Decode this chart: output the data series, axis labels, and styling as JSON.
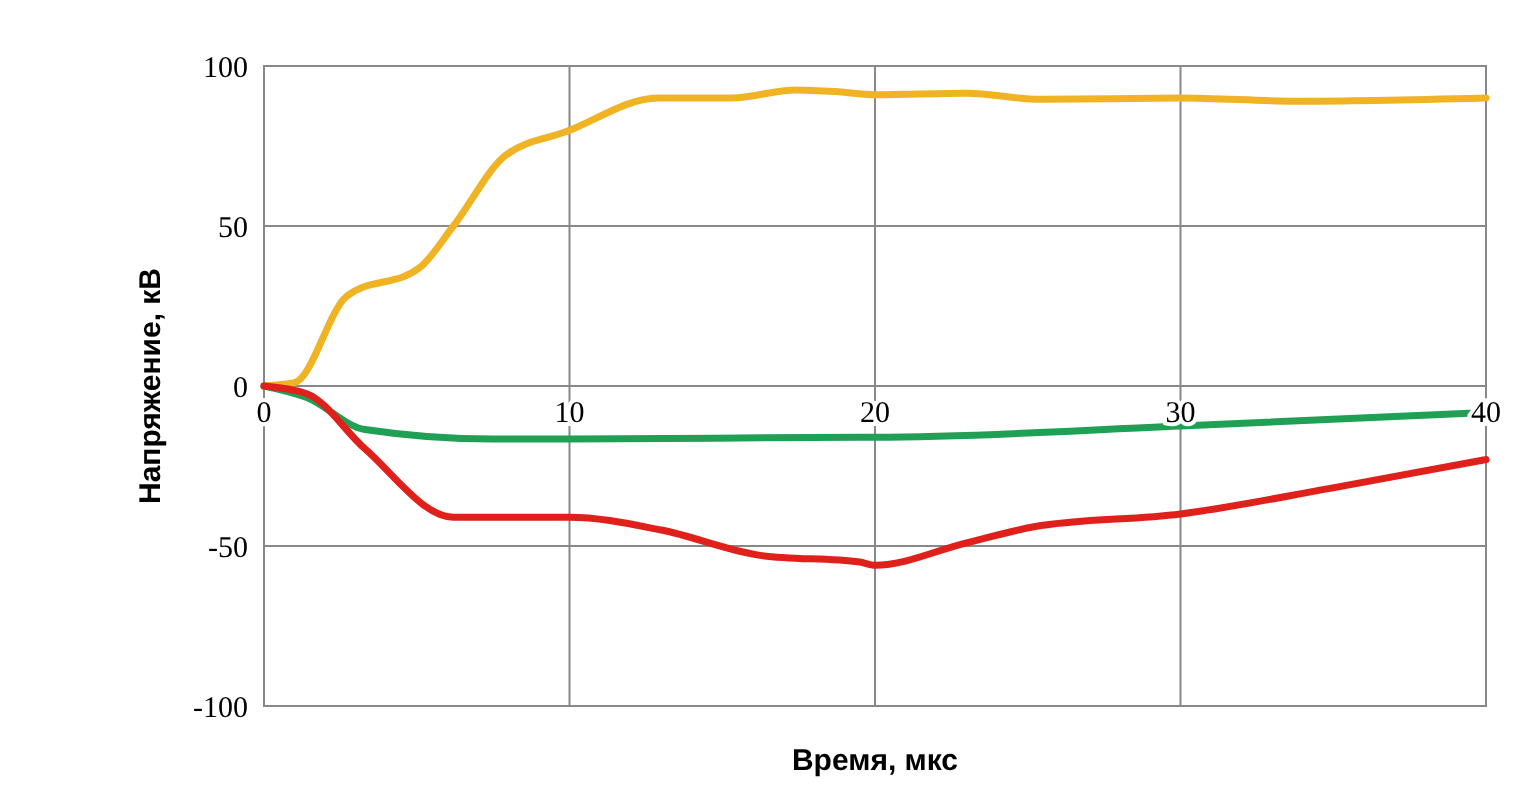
{
  "chart_data": {
    "type": "line",
    "xlabel": "Время, мкс",
    "ylabel": "Напряжение, кВ",
    "xlim": [
      0,
      40
    ],
    "ylim": [
      -100,
      100
    ],
    "xticks": [
      0,
      10,
      20,
      30,
      40
    ],
    "yticks": [
      -100,
      -50,
      0,
      50,
      100
    ],
    "grid": true,
    "marker": "none",
    "line_style": "solid",
    "series": [
      {
        "color": "#f0b323",
        "x": [
          0,
          1,
          2.7,
          5.1,
          6.2,
          7.9,
          9.9,
          12.9,
          15.3,
          17.4,
          18.7,
          20,
          23,
          25.4,
          30,
          33.8,
          40
        ],
        "values": [
          0,
          1,
          28,
          37,
          50,
          72,
          79.5,
          90,
          90,
          92.5,
          92,
          91,
          91.5,
          89.6,
          90,
          89,
          90
        ]
      },
      {
        "color": "#1fa055",
        "x": [
          0,
          1.4,
          3.3,
          7.5,
          10,
          19.5,
          20,
          30,
          40
        ],
        "values": [
          0,
          -3.6,
          -13.6,
          -16.6,
          -16.6,
          -16,
          -16,
          -12.5,
          -8.3
        ]
      },
      {
        "color": "#e0201b",
        "x": [
          0,
          1.4,
          3.3,
          6.2,
          10,
          13,
          16.3,
          19.5,
          20,
          23,
          25.2,
          30,
          34.9,
          40
        ],
        "values": [
          0,
          -2.4,
          -19.6,
          -41,
          -41,
          -45,
          -53,
          -55,
          -56,
          -49,
          -44,
          -40,
          -32,
          -23
        ]
      }
    ]
  }
}
